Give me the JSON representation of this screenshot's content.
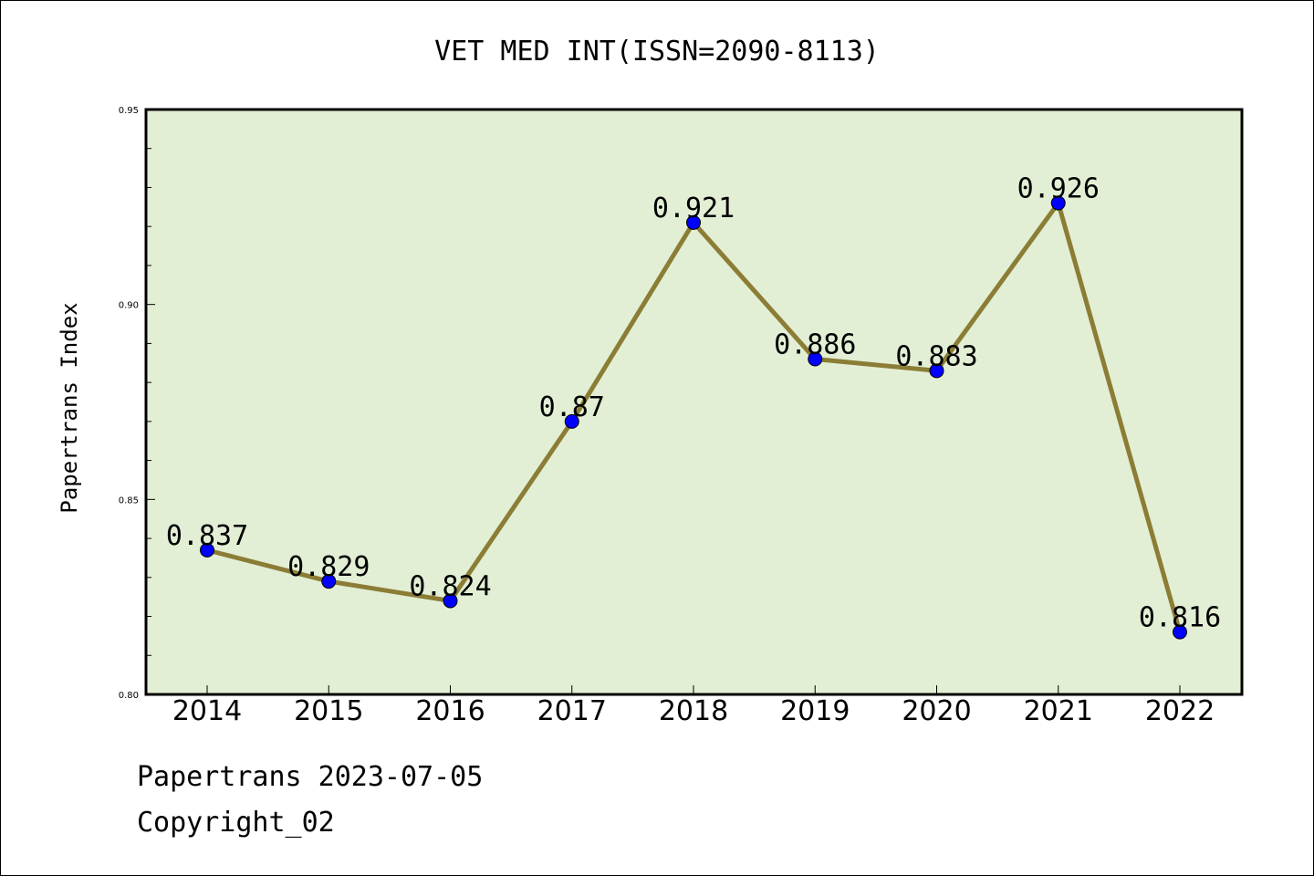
{
  "chart_data": {
    "type": "line",
    "title": "VET MED INT(ISSN=2090-8113)",
    "xlabel": "",
    "ylabel": "Papertrans Index",
    "categories": [
      "2014",
      "2015",
      "2016",
      "2017",
      "2018",
      "2019",
      "2020",
      "2021",
      "2022"
    ],
    "values": [
      0.837,
      0.829,
      0.824,
      0.87,
      0.921,
      0.886,
      0.883,
      0.926,
      0.816
    ],
    "data_labels": [
      "0.837",
      "0.829",
      "0.824",
      "0.87",
      "0.921",
      "0.886",
      "0.883",
      "0.926",
      "0.816"
    ],
    "ylim": [
      0.8,
      0.95
    ],
    "yticks": [
      "0.80",
      "0.85",
      "0.90",
      "0.95"
    ],
    "grid": false,
    "legend": "none",
    "colors": {
      "plot_background": "#e2efd5",
      "line": "#8b7d35",
      "marker": "#0000ff"
    }
  },
  "footer": {
    "line1": "Papertrans 2023-07-05",
    "line2": "Copyright_02"
  }
}
